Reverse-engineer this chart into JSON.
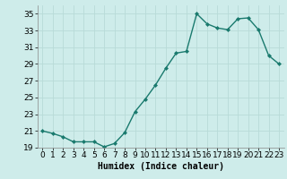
{
  "x": [
    0,
    1,
    2,
    3,
    4,
    5,
    6,
    7,
    8,
    9,
    10,
    11,
    12,
    13,
    14,
    15,
    16,
    17,
    18,
    19,
    20,
    21,
    22,
    23
  ],
  "y": [
    21.0,
    20.7,
    20.3,
    19.7,
    19.7,
    19.7,
    19.1,
    19.5,
    20.8,
    23.3,
    24.8,
    26.5,
    28.5,
    30.3,
    30.5,
    35.0,
    33.8,
    33.3,
    33.1,
    34.4,
    34.5,
    33.1,
    30.0,
    29.0
  ],
  "xlabel": "Humidex (Indice chaleur)",
  "xlim": [
    -0.5,
    23.5
  ],
  "ylim": [
    19.0,
    36.0
  ],
  "yticks": [
    19,
    21,
    23,
    25,
    27,
    29,
    31,
    33,
    35
  ],
  "xticks": [
    0,
    1,
    2,
    3,
    4,
    5,
    6,
    7,
    8,
    9,
    10,
    11,
    12,
    13,
    14,
    15,
    16,
    17,
    18,
    19,
    20,
    21,
    22,
    23
  ],
  "line_color": "#1a7a6e",
  "bg_color": "#ceecea",
  "grid_color": "#b8dbd8",
  "marker": "D",
  "marker_size": 2.0,
  "line_width": 1.0,
  "xlabel_fontsize": 7,
  "tick_fontsize": 6.5
}
